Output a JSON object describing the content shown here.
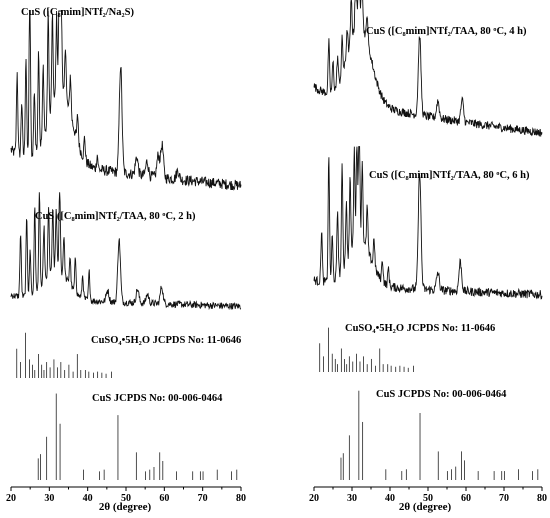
{
  "chart_data": [
    {
      "type": "line",
      "panel": "left",
      "xlabel": "2θ (degree)",
      "xlim": [
        20,
        80
      ],
      "xticks": [
        "20",
        "30",
        "40",
        "50",
        "60",
        "70",
        "80"
      ],
      "yaxis": "none",
      "traces": [
        {
          "name": "CuS ([C₈mim]NTf₂/Na₂S)",
          "baseline_start": 0.28,
          "baseline_end": 0.08,
          "peaks": [
            [
              21.6,
              0.45
            ],
            [
              22.8,
              0.3
            ],
            [
              23.9,
              0.55
            ],
            [
              24.9,
              0.95
            ],
            [
              26.1,
              0.35
            ],
            [
              27.2,
              0.55
            ],
            [
              28.4,
              0.4
            ],
            [
              29.7,
              0.6
            ],
            [
              30.8,
              0.5
            ],
            [
              31.9,
              0.45
            ],
            [
              32.6,
              0.65
            ],
            [
              33.1,
              0.55
            ],
            [
              34.2,
              0.3
            ],
            [
              35.5,
              0.22
            ],
            [
              37.4,
              0.15
            ],
            [
              39.2,
              0.12
            ],
            [
              42.5,
              0.08
            ],
            [
              48.6,
              0.6
            ],
            [
              52.8,
              0.1
            ],
            [
              55.5,
              0.08
            ],
            [
              58.4,
              0.12
            ],
            [
              59.4,
              0.18
            ],
            [
              63.5,
              0.05
            ]
          ],
          "hump_center": 33,
          "hump_height": 0.4
        },
        {
          "name": "CuS ([C₈mim]NTf₂/TAA, 80 ᵒC, 2 h)",
          "baseline_start": 0.15,
          "baseline_end": 0.05,
          "peaks": [
            [
              22.5,
              0.55
            ],
            [
              24.1,
              0.7
            ],
            [
              25.0,
              0.4
            ],
            [
              26.2,
              0.75
            ],
            [
              27.4,
              0.85
            ],
            [
              28.6,
              0.5
            ],
            [
              29.8,
              0.6
            ],
            [
              30.9,
              0.55
            ],
            [
              31.8,
              0.55
            ],
            [
              32.7,
              0.75
            ],
            [
              33.8,
              0.35
            ],
            [
              35.4,
              0.25
            ],
            [
              36.8,
              0.3
            ],
            [
              38.7,
              0.2
            ],
            [
              40.4,
              0.25
            ],
            [
              45.2,
              0.1
            ],
            [
              48.2,
              0.55
            ],
            [
              53.0,
              0.12
            ],
            [
              55.6,
              0.08
            ],
            [
              59.3,
              0.15
            ]
          ],
          "hump_center": 32,
          "hump_height": 0.25
        },
        {
          "name": "CuSO₄•5H₂O  JCPDS No: 11-0646",
          "kind": "stick",
          "sticks": [
            [
              21.5,
              0.55
            ],
            [
              22.5,
              0.3
            ],
            [
              23.8,
              0.85
            ],
            [
              24.8,
              0.35
            ],
            [
              25.6,
              0.25
            ],
            [
              26.2,
              0.15
            ],
            [
              27.2,
              0.45
            ],
            [
              28.0,
              0.25
            ],
            [
              28.6,
              0.15
            ],
            [
              29.3,
              0.3
            ],
            [
              30.2,
              0.2
            ],
            [
              31.2,
              0.35
            ],
            [
              32.1,
              0.2
            ],
            [
              33.0,
              0.3
            ],
            [
              34.0,
              0.15
            ],
            [
              35.1,
              0.25
            ],
            [
              36.2,
              0.12
            ],
            [
              37.3,
              0.45
            ],
            [
              38.2,
              0.15
            ],
            [
              39.4,
              0.15
            ],
            [
              40.3,
              0.12
            ],
            [
              41.5,
              0.1
            ],
            [
              42.6,
              0.12
            ],
            [
              43.7,
              0.1
            ],
            [
              44.8,
              0.08
            ],
            [
              46.2,
              0.12
            ]
          ]
        },
        {
          "name": "CuS  JCPDS No: 00-006-0464",
          "kind": "stick",
          "sticks": [
            [
              27.1,
              0.25
            ],
            [
              27.7,
              0.3
            ],
            [
              29.3,
              0.5
            ],
            [
              31.8,
              1.0
            ],
            [
              32.8,
              0.65
            ],
            [
              38.9,
              0.12
            ],
            [
              43.1,
              0.1
            ],
            [
              44.3,
              0.12
            ],
            [
              47.9,
              0.75
            ],
            [
              52.7,
              0.32
            ],
            [
              55.1,
              0.1
            ],
            [
              56.2,
              0.12
            ],
            [
              57.3,
              0.15
            ],
            [
              58.8,
              0.32
            ],
            [
              59.6,
              0.22
            ],
            [
              63.2,
              0.1
            ],
            [
              67.4,
              0.1
            ],
            [
              69.4,
              0.1
            ],
            [
              70.1,
              0.1
            ],
            [
              73.8,
              0.12
            ],
            [
              77.5,
              0.1
            ],
            [
              78.9,
              0.12
            ]
          ]
        }
      ]
    },
    {
      "type": "line",
      "panel": "right",
      "xlabel": "2θ (degree)",
      "xlim": [
        20,
        80
      ],
      "xticks": [
        "20",
        "30",
        "40",
        "50",
        "60",
        "70",
        "80"
      ],
      "yaxis": "none",
      "traces": [
        {
          "name": "CuS ([C₈mim]NTf₂/TAA, 80 ᵒC, 4 h)",
          "baseline_start": 0.45,
          "baseline_end": 0.12,
          "peaks": [
            [
              23.9,
              0.35
            ],
            [
              25.0,
              0.2
            ],
            [
              26.2,
              0.2
            ],
            [
              27.4,
              0.25
            ],
            [
              28.7,
              0.2
            ],
            [
              29.8,
              0.3
            ],
            [
              31.0,
              0.55
            ],
            [
              31.8,
              0.75
            ],
            [
              32.6,
              0.55
            ],
            [
              34.0,
              0.2
            ],
            [
              47.8,
              0.55
            ],
            [
              52.6,
              0.12
            ],
            [
              59.0,
              0.15
            ]
          ],
          "hump_center": 32,
          "hump_height": 0.55
        },
        {
          "name": "CuS ([C₈mim]NTf₂/TAA, 80 ᵒC, 6 h)",
          "baseline_start": 0.15,
          "baseline_end": 0.05,
          "peaks": [
            [
              22.0,
              0.35
            ],
            [
              23.9,
              0.85
            ],
            [
              24.8,
              0.3
            ],
            [
              26.2,
              0.45
            ],
            [
              27.4,
              0.7
            ],
            [
              28.5,
              0.4
            ],
            [
              29.5,
              0.5
            ],
            [
              30.6,
              0.65
            ],
            [
              31.3,
              0.7
            ],
            [
              31.9,
              0.9
            ],
            [
              32.7,
              0.55
            ],
            [
              34.0,
              0.3
            ],
            [
              35.8,
              0.2
            ],
            [
              38.0,
              0.15
            ],
            [
              39.6,
              0.12
            ],
            [
              47.8,
              0.8
            ],
            [
              52.6,
              0.12
            ],
            [
              58.5,
              0.2
            ]
          ],
          "hump_center": 32,
          "hump_height": 0.3
        },
        {
          "name": "CuSO₄•5H₂O  JCPDS No: 11-0646",
          "kind": "stick",
          "sticks": [
            [
              21.5,
              0.55
            ],
            [
              22.5,
              0.3
            ],
            [
              23.8,
              0.85
            ],
            [
              24.8,
              0.35
            ],
            [
              25.6,
              0.25
            ],
            [
              26.2,
              0.15
            ],
            [
              27.2,
              0.45
            ],
            [
              28.0,
              0.25
            ],
            [
              28.6,
              0.15
            ],
            [
              29.3,
              0.3
            ],
            [
              30.2,
              0.2
            ],
            [
              31.2,
              0.35
            ],
            [
              32.1,
              0.2
            ],
            [
              33.0,
              0.3
            ],
            [
              34.0,
              0.15
            ],
            [
              35.1,
              0.25
            ],
            [
              36.2,
              0.12
            ],
            [
              37.3,
              0.45
            ],
            [
              38.2,
              0.15
            ],
            [
              39.4,
              0.15
            ],
            [
              40.3,
              0.12
            ],
            [
              41.5,
              0.1
            ],
            [
              42.6,
              0.12
            ],
            [
              43.7,
              0.1
            ],
            [
              44.8,
              0.08
            ],
            [
              46.2,
              0.12
            ]
          ]
        },
        {
          "name": "CuS  JCPDS No: 00-006-0464",
          "kind": "stick",
          "sticks": [
            [
              27.1,
              0.25
            ],
            [
              27.7,
              0.3
            ],
            [
              29.3,
              0.5
            ],
            [
              31.8,
              1.0
            ],
            [
              32.8,
              0.65
            ],
            [
              38.9,
              0.12
            ],
            [
              43.1,
              0.1
            ],
            [
              44.3,
              0.12
            ],
            [
              47.9,
              0.75
            ],
            [
              52.7,
              0.32
            ],
            [
              55.1,
              0.1
            ],
            [
              56.2,
              0.12
            ],
            [
              57.3,
              0.15
            ],
            [
              58.8,
              0.32
            ],
            [
              59.6,
              0.22
            ],
            [
              63.2,
              0.1
            ],
            [
              67.4,
              0.1
            ],
            [
              69.4,
              0.1
            ],
            [
              70.1,
              0.1
            ],
            [
              73.8,
              0.12
            ],
            [
              77.5,
              0.1
            ],
            [
              78.9,
              0.12
            ]
          ]
        }
      ]
    }
  ]
}
